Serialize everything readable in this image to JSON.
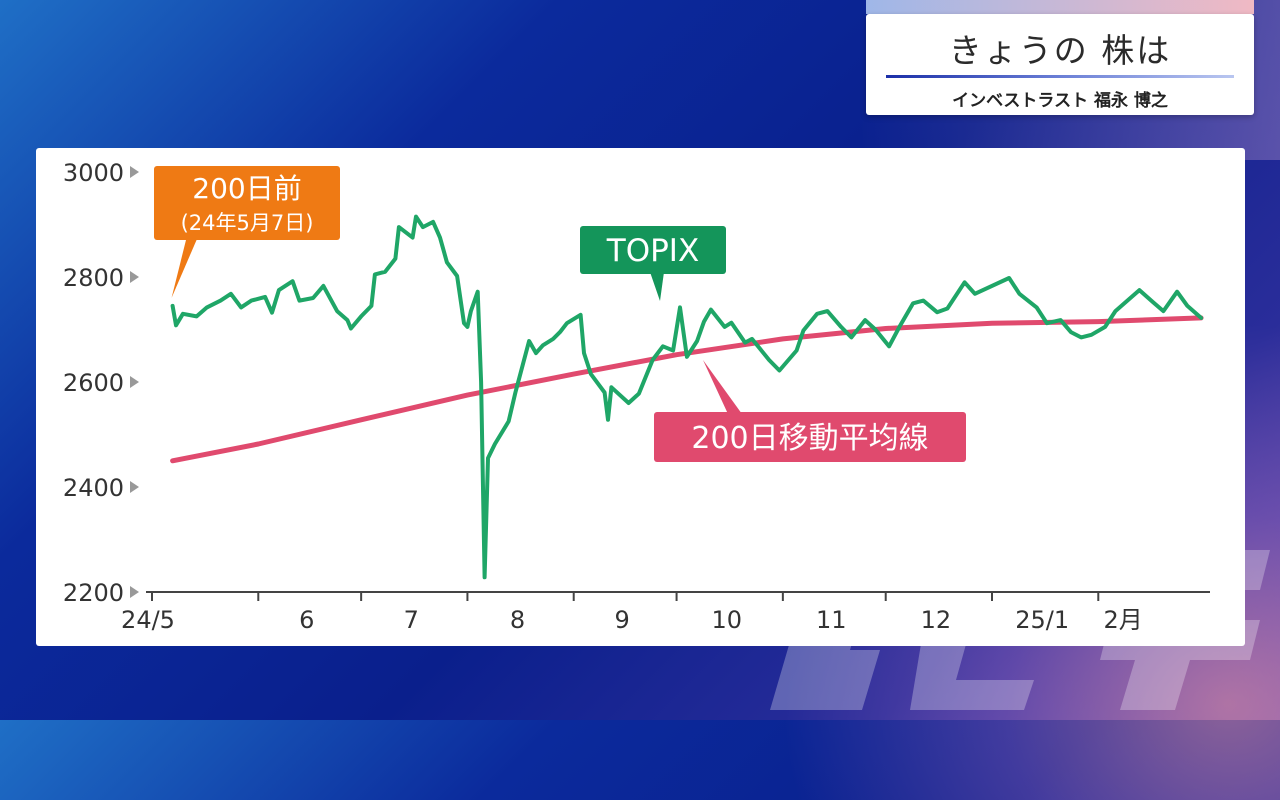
{
  "header": {
    "title": "きょうの 株は",
    "subtitle": "インベストラスト 福永 博之"
  },
  "colors": {
    "topix": "#1fa667",
    "moving_average": "#e04a6e",
    "callout_start": "#ef7a14",
    "callout_topix": "#14955a",
    "callout_ma": "#e04a6e"
  },
  "chart_data": {
    "type": "line",
    "title": "",
    "ylim": [
      2200,
      3000
    ],
    "y_ticks": [
      "3000",
      "2800",
      "2600",
      "2400",
      "2200"
    ],
    "x_ticks": [
      "24/5",
      "6",
      "7",
      "8",
      "9",
      "10",
      "11",
      "12",
      "25/1",
      "2月"
    ],
    "x_tick_dates": [
      "2024-05-01",
      "2024-06-01",
      "2024-07-01",
      "2024-08-01",
      "2024-09-01",
      "2024-10-01",
      "2024-11-01",
      "2024-12-01",
      "2025-01-01",
      "2025-02-01"
    ],
    "x_range": [
      "2024-05-01",
      "2025-03-05"
    ],
    "annotations": {
      "start": [
        "200日前",
        "(24年5月7日)"
      ],
      "topix": "TOPIX",
      "moving_average": "200日移動平均線"
    },
    "series": [
      {
        "name": "TOPIX",
        "points": [
          [
            "2024-05-07",
            2745
          ],
          [
            "2024-05-08",
            2708
          ],
          [
            "2024-05-10",
            2730
          ],
          [
            "2024-05-14",
            2725
          ],
          [
            "2024-05-17",
            2742
          ],
          [
            "2024-05-21",
            2755
          ],
          [
            "2024-05-24",
            2768
          ],
          [
            "2024-05-27",
            2742
          ],
          [
            "2024-05-30",
            2755
          ],
          [
            "2024-06-03",
            2762
          ],
          [
            "2024-06-05",
            2732
          ],
          [
            "2024-06-07",
            2775
          ],
          [
            "2024-06-11",
            2792
          ],
          [
            "2024-06-13",
            2755
          ],
          [
            "2024-06-17",
            2760
          ],
          [
            "2024-06-20",
            2783
          ],
          [
            "2024-06-24",
            2735
          ],
          [
            "2024-06-27",
            2718
          ],
          [
            "2024-06-28",
            2702
          ],
          [
            "2024-07-01",
            2725
          ],
          [
            "2024-07-04",
            2745
          ],
          [
            "2024-07-05",
            2805
          ],
          [
            "2024-07-08",
            2810
          ],
          [
            "2024-07-11",
            2835
          ],
          [
            "2024-07-12",
            2895
          ],
          [
            "2024-07-16",
            2875
          ],
          [
            "2024-07-17",
            2915
          ],
          [
            "2024-07-19",
            2895
          ],
          [
            "2024-07-22",
            2905
          ],
          [
            "2024-07-24",
            2875
          ],
          [
            "2024-07-25",
            2852
          ],
          [
            "2024-07-26",
            2828
          ],
          [
            "2024-07-29",
            2802
          ],
          [
            "2024-07-31",
            2712
          ],
          [
            "2024-08-01",
            2705
          ],
          [
            "2024-08-02",
            2735
          ],
          [
            "2024-08-04",
            2772
          ],
          [
            "2024-08-05",
            2600
          ],
          [
            "2024-08-06",
            2228
          ],
          [
            "2024-08-07",
            2455
          ],
          [
            "2024-08-09",
            2482
          ],
          [
            "2024-08-13",
            2525
          ],
          [
            "2024-08-15",
            2580
          ],
          [
            "2024-08-19",
            2678
          ],
          [
            "2024-08-21",
            2655
          ],
          [
            "2024-08-23",
            2670
          ],
          [
            "2024-08-26",
            2682
          ],
          [
            "2024-08-28",
            2695
          ],
          [
            "2024-08-30",
            2712
          ],
          [
            "2024-09-03",
            2728
          ],
          [
            "2024-09-04",
            2655
          ],
          [
            "2024-09-06",
            2615
          ],
          [
            "2024-09-10",
            2580
          ],
          [
            "2024-09-11",
            2528
          ],
          [
            "2024-09-12",
            2590
          ],
          [
            "2024-09-17",
            2560
          ],
          [
            "2024-09-20",
            2578
          ],
          [
            "2024-09-24",
            2642
          ],
          [
            "2024-09-27",
            2668
          ],
          [
            "2024-09-30",
            2660
          ],
          [
            "2024-10-02",
            2742
          ],
          [
            "2024-10-04",
            2648
          ],
          [
            "2024-10-07",
            2678
          ],
          [
            "2024-10-09",
            2715
          ],
          [
            "2024-10-11",
            2738
          ],
          [
            "2024-10-15",
            2705
          ],
          [
            "2024-10-17",
            2713
          ],
          [
            "2024-10-21",
            2675
          ],
          [
            "2024-10-23",
            2682
          ],
          [
            "2024-10-28",
            2642
          ],
          [
            "2024-10-31",
            2622
          ],
          [
            "2024-11-05",
            2660
          ],
          [
            "2024-11-07",
            2698
          ],
          [
            "2024-11-11",
            2730
          ],
          [
            "2024-11-14",
            2735
          ],
          [
            "2024-11-18",
            2705
          ],
          [
            "2024-11-21",
            2685
          ],
          [
            "2024-11-25",
            2718
          ],
          [
            "2024-11-28",
            2700
          ],
          [
            "2024-12-02",
            2668
          ],
          [
            "2024-12-05",
            2705
          ],
          [
            "2024-12-09",
            2750
          ],
          [
            "2024-12-12",
            2755
          ],
          [
            "2024-12-16",
            2733
          ],
          [
            "2024-12-19",
            2740
          ],
          [
            "2024-12-24",
            2790
          ],
          [
            "2024-12-27",
            2768
          ],
          [
            "2025-01-06",
            2798
          ],
          [
            "2025-01-09",
            2768
          ],
          [
            "2025-01-14",
            2742
          ],
          [
            "2025-01-17",
            2712
          ],
          [
            "2025-01-21",
            2718
          ],
          [
            "2025-01-24",
            2695
          ],
          [
            "2025-01-27",
            2685
          ],
          [
            "2025-01-30",
            2690
          ],
          [
            "2025-02-03",
            2705
          ],
          [
            "2025-02-06",
            2735
          ],
          [
            "2025-02-10",
            2758
          ],
          [
            "2025-02-13",
            2775
          ],
          [
            "2025-02-17",
            2752
          ],
          [
            "2025-02-20",
            2735
          ],
          [
            "2025-02-24",
            2772
          ],
          [
            "2025-02-27",
            2745
          ],
          [
            "2025-03-03",
            2722
          ]
        ]
      },
      {
        "name": "200日移動平均線",
        "points": [
          [
            "2024-05-07",
            2450
          ],
          [
            "2024-06-01",
            2482
          ],
          [
            "2024-07-01",
            2528
          ],
          [
            "2024-08-01",
            2575
          ],
          [
            "2024-09-01",
            2615
          ],
          [
            "2024-10-01",
            2652
          ],
          [
            "2024-11-01",
            2682
          ],
          [
            "2024-12-01",
            2702
          ],
          [
            "2025-01-01",
            2712
          ],
          [
            "2025-02-01",
            2715
          ],
          [
            "2025-03-03",
            2722
          ]
        ]
      }
    ]
  }
}
